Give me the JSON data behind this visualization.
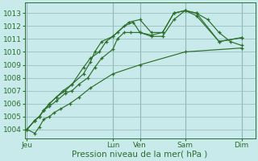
{
  "bg_color": "#c8eaea",
  "grid_color": "#9abfbf",
  "line_color": "#2d6e2d",
  "xlabel": "Pression niveau de la mer( hPa )",
  "ylim": [
    1003.3,
    1013.8
  ],
  "yticks": [
    1004,
    1005,
    1006,
    1007,
    1008,
    1009,
    1010,
    1011,
    1012,
    1013
  ],
  "xlim": [
    -0.1,
    10.1
  ],
  "xtick_labels": [
    "Jeu",
    "Lun",
    "Ven",
    "Sam",
    "Dim"
  ],
  "xtick_positions": [
    0.0,
    3.8,
    5.0,
    7.0,
    9.5
  ],
  "series": [
    {
      "x": [
        0.0,
        0.35,
        0.55,
        0.75,
        1.0,
        1.2,
        1.5,
        1.9,
        2.3,
        2.8,
        3.8,
        5.0,
        7.0,
        9.5
      ],
      "y": [
        1004.0,
        1003.7,
        1004.2,
        1004.8,
        1005.0,
        1005.3,
        1005.6,
        1006.0,
        1006.5,
        1007.2,
        1008.3,
        1009.0,
        1010.0,
        1010.3
      ]
    },
    {
      "x": [
        0.0,
        0.35,
        0.55,
        0.75,
        1.0,
        1.3,
        1.7,
        2.0,
        2.3,
        2.7,
        3.0,
        3.3,
        3.8,
        4.0,
        4.3,
        4.6,
        5.0,
        5.5,
        6.0,
        6.5,
        7.0,
        7.5,
        8.0,
        8.5,
        9.0,
        9.5
      ],
      "y": [
        1004.0,
        1004.7,
        1005.0,
        1005.5,
        1005.8,
        1006.2,
        1006.8,
        1007.0,
        1007.5,
        1008.0,
        1008.8,
        1009.5,
        1010.2,
        1011.0,
        1011.5,
        1011.5,
        1011.5,
        1011.2,
        1011.2,
        1012.5,
        1013.2,
        1013.0,
        1012.5,
        1011.5,
        1010.8,
        1010.5
      ]
    },
    {
      "x": [
        0.0,
        0.35,
        0.55,
        0.75,
        1.0,
        1.3,
        1.7,
        2.0,
        2.5,
        2.8,
        3.0,
        3.3,
        3.8,
        4.0,
        4.5,
        5.0,
        5.5,
        6.0,
        6.5,
        7.0,
        7.5,
        8.5,
        9.5
      ],
      "y": [
        1004.0,
        1004.7,
        1005.0,
        1005.5,
        1006.0,
        1006.5,
        1007.0,
        1007.5,
        1008.3,
        1009.2,
        1010.0,
        1010.8,
        1011.2,
        1011.5,
        1012.3,
        1012.5,
        1011.5,
        1011.5,
        1013.0,
        1013.2,
        1013.0,
        1010.8,
        1011.1
      ]
    },
    {
      "x": [
        0.0,
        0.35,
        0.55,
        0.75,
        1.0,
        1.3,
        1.6,
        2.0,
        2.5,
        2.8,
        3.2,
        3.5,
        3.8,
        4.3,
        4.7,
        5.0,
        5.5,
        6.0,
        6.5,
        7.0,
        7.5,
        8.5,
        9.5
      ],
      "y": [
        1004.0,
        1004.7,
        1005.0,
        1005.5,
        1006.0,
        1006.5,
        1007.0,
        1007.5,
        1008.8,
        1009.5,
        1010.0,
        1010.8,
        1011.2,
        1012.0,
        1012.3,
        1011.5,
        1011.3,
        1011.5,
        1013.0,
        1013.2,
        1012.8,
        1010.8,
        1011.1
      ]
    }
  ]
}
